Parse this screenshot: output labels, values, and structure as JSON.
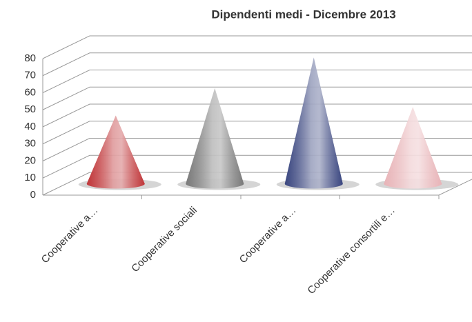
{
  "chart_data": {
    "type": "cone",
    "title": "Dipendenti medi - Dicembre 2013",
    "categories": [
      "Cooperative a…",
      "Cooperative sociali",
      "Cooperative a…",
      "Cooperative consortili e…"
    ],
    "values": [
      40,
      56,
      74,
      45
    ],
    "colors": [
      "#c0373a",
      "#7a7a7a",
      "#3b4780",
      "#e8b4b8"
    ],
    "ylim": [
      0,
      80
    ],
    "yticks": [
      0,
      10,
      20,
      30,
      40,
      50,
      60,
      70,
      80
    ],
    "grid": true
  }
}
